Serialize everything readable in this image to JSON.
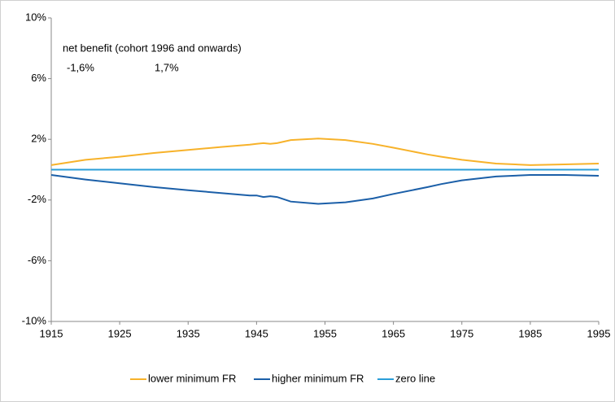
{
  "chart_data": {
    "type": "line",
    "annotations": [
      "net benefit (cohort 1996 and onwards)",
      "-1,6%",
      "1,7%"
    ],
    "annotation_colors": [
      "#000000",
      "#f5b020",
      "#1f6fb0"
    ],
    "x": [
      1915,
      1920,
      1925,
      1930,
      1935,
      1940,
      1944,
      1945,
      1946,
      1947,
      1948,
      1950,
      1954,
      1958,
      1962,
      1965,
      1970,
      1972,
      1975,
      1980,
      1985,
      1990,
      1995
    ],
    "series": [
      {
        "name": "lower minimum FR",
        "color": "#f7b22a",
        "values": [
          0.3,
          0.65,
          0.85,
          1.1,
          1.3,
          1.5,
          1.65,
          1.7,
          1.75,
          1.7,
          1.75,
          1.95,
          2.05,
          1.95,
          1.7,
          1.45,
          1.0,
          0.85,
          0.65,
          0.4,
          0.3,
          0.35,
          0.4
        ]
      },
      {
        "name": "higher minimum FR",
        "color": "#1b5fa8",
        "values": [
          -0.35,
          -0.65,
          -0.9,
          -1.15,
          -1.35,
          -1.55,
          -1.7,
          -1.7,
          -1.8,
          -1.75,
          -1.8,
          -2.1,
          -2.25,
          -2.15,
          -1.9,
          -1.6,
          -1.15,
          -0.95,
          -0.7,
          -0.45,
          -0.35,
          -0.35,
          -0.4
        ]
      },
      {
        "name": "zero line",
        "color": "#2a9ed8",
        "values": [
          0,
          0,
          0,
          0,
          0,
          0,
          0,
          0,
          0,
          0,
          0,
          0,
          0,
          0,
          0,
          0,
          0,
          0,
          0,
          0,
          0,
          0,
          0
        ]
      }
    ],
    "xlim": [
      1915,
      1995
    ],
    "xticks": [
      1915,
      1925,
      1935,
      1945,
      1955,
      1965,
      1975,
      1985,
      1995
    ],
    "ylim": [
      -10,
      10
    ],
    "yticks": [
      {
        "value": 10,
        "label": "10%"
      },
      {
        "value": 6,
        "label": "6%"
      },
      {
        "value": 2,
        "label": "2%"
      },
      {
        "value": -2,
        "label": "-2%"
      },
      {
        "value": -6,
        "label": "-6%"
      },
      {
        "value": -10,
        "label": "-10%"
      }
    ],
    "legend": "bottom"
  }
}
